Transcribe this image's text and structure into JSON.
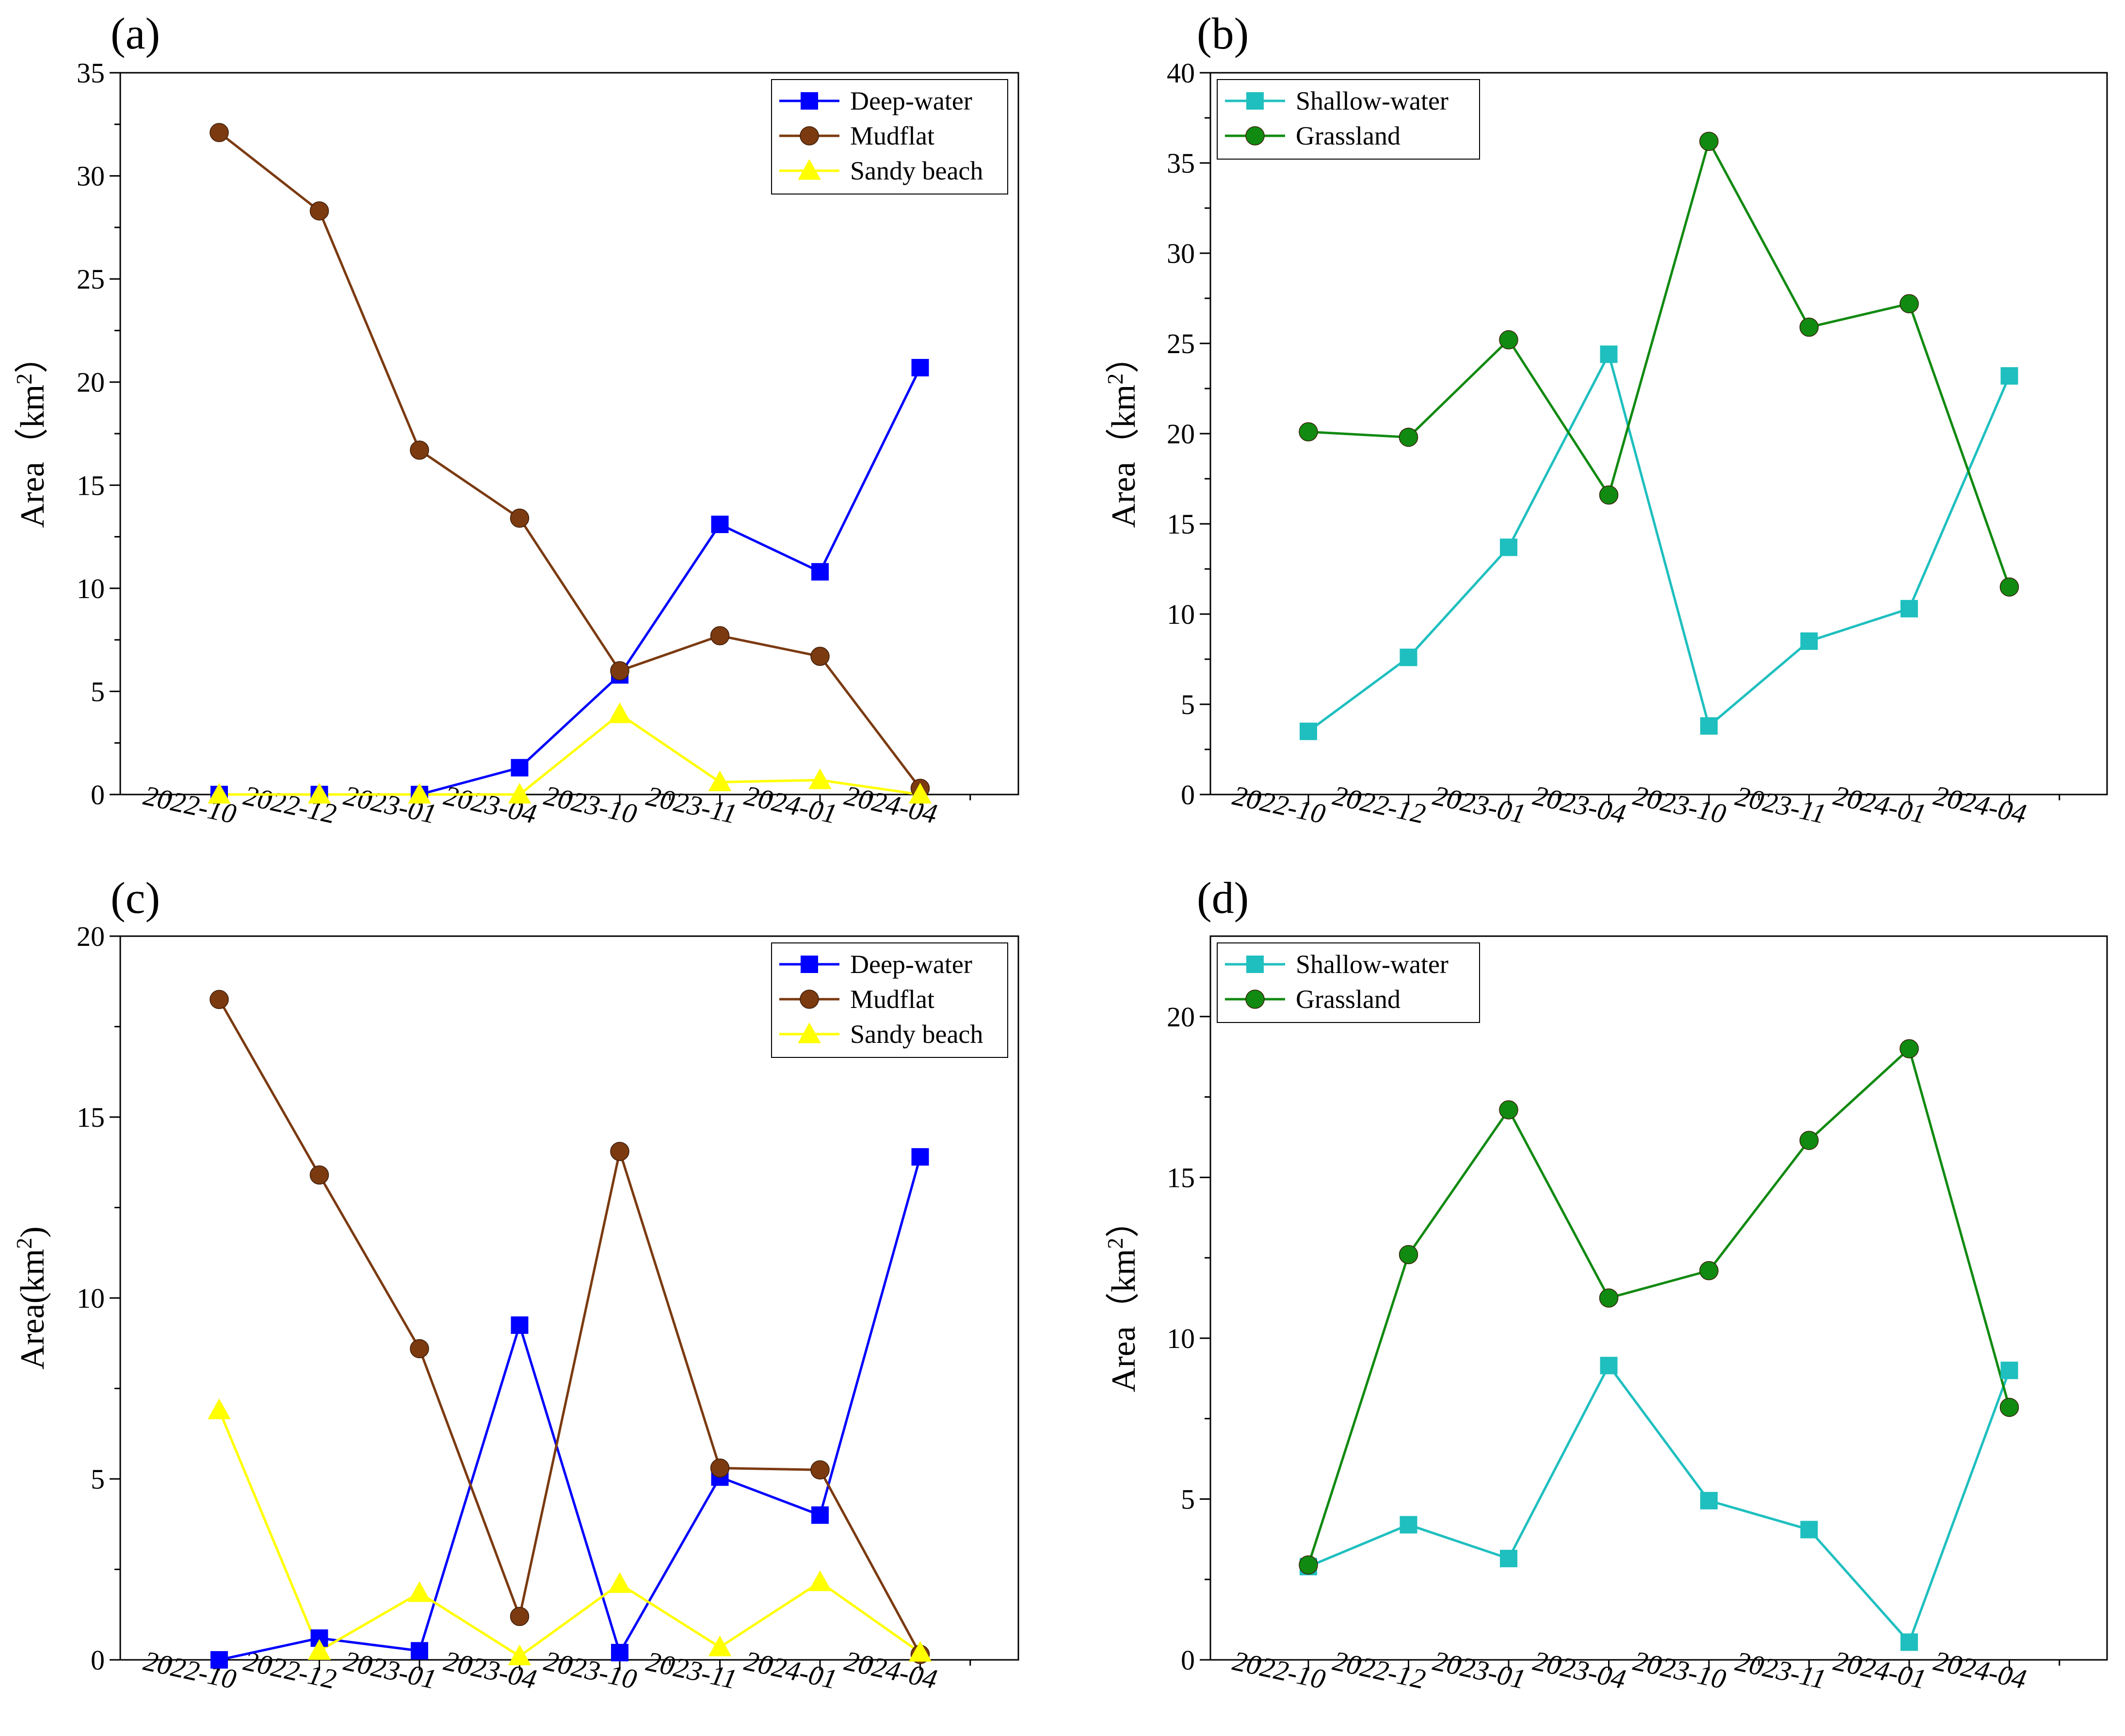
{
  "figure": {
    "panels": [
      "(a)",
      "(b)",
      "(c)",
      "(d)"
    ]
  },
  "chart_data": [
    {
      "type": "line",
      "panel_label": "(a)",
      "categories": [
        "2022-10",
        "2022-12",
        "2023-01",
        "2023-04",
        "2023-10",
        "2023-11",
        "2024-01",
        "2024-04"
      ],
      "ylabel_text": "Area（km",
      "ylabel_sup": "2",
      "ylabel_close": "）",
      "ylim": [
        0,
        35
      ],
      "yticks": [
        0,
        5,
        10,
        15,
        20,
        25,
        30,
        35
      ],
      "legend_position": "top-right",
      "series": [
        {
          "name": "Deep-water",
          "color": "#0000ff",
          "marker": "square",
          "values": [
            0,
            0,
            0,
            1.3,
            5.8,
            13.1,
            10.8,
            20.7
          ]
        },
        {
          "name": "Mudflat",
          "color": "#7b3a10",
          "marker": "circle",
          "values": [
            32.1,
            28.3,
            16.7,
            13.4,
            6.0,
            7.7,
            6.7,
            0.3
          ]
        },
        {
          "name": "Sandy beach",
          "color": "#ffff00",
          "marker": "triangle",
          "values": [
            0,
            0,
            0,
            0,
            3.9,
            0.6,
            0.7,
            0
          ]
        }
      ]
    },
    {
      "type": "line",
      "panel_label": "(b)",
      "categories": [
        "2022-10",
        "2022-12",
        "2023-01",
        "2023-04",
        "2023-10",
        "2023-11",
        "2024-01",
        "2024-04"
      ],
      "ylabel_text": "Area（km",
      "ylabel_sup": "2",
      "ylabel_close": "）",
      "ylim": [
        0,
        40
      ],
      "yticks": [
        0,
        5,
        10,
        15,
        20,
        25,
        30,
        35,
        40
      ],
      "legend_position": "top-left",
      "series": [
        {
          "name": "Shallow-water",
          "color": "#1fbfbf",
          "marker": "square",
          "values": [
            3.5,
            7.6,
            13.7,
            24.4,
            3.8,
            8.5,
            10.3,
            23.2
          ]
        },
        {
          "name": "Grassland",
          "color": "#118a11",
          "marker": "circle",
          "values": [
            20.1,
            19.8,
            25.2,
            16.6,
            36.2,
            25.9,
            27.2,
            11.5
          ]
        }
      ]
    },
    {
      "type": "line",
      "panel_label": "(c)",
      "categories": [
        "2022-10",
        "2022-12",
        "2023-01",
        "2023-04",
        "2023-10",
        "2023-11",
        "2024-01",
        "2024-04"
      ],
      "ylabel_text": "Area(km",
      "ylabel_sup": "2",
      "ylabel_close": ")",
      "ylim": [
        0,
        20
      ],
      "yticks": [
        0,
        5,
        10,
        15,
        20
      ],
      "legend_position": "top-right",
      "series": [
        {
          "name": "Deep-water",
          "color": "#0000ff",
          "marker": "square",
          "values": [
            0,
            0.6,
            0.25,
            9.25,
            0.2,
            5.05,
            4.0,
            13.9
          ]
        },
        {
          "name": "Mudflat",
          "color": "#7b3a10",
          "marker": "circle",
          "values": [
            18.25,
            13.4,
            8.6,
            1.2,
            14.05,
            5.3,
            5.25,
            0.15
          ]
        },
        {
          "name": "Sandy beach",
          "color": "#ffff00",
          "marker": "triangle",
          "values": [
            6.9,
            0.25,
            1.85,
            0.1,
            2.1,
            0.35,
            2.15,
            0.2
          ]
        }
      ]
    },
    {
      "type": "line",
      "panel_label": "(d)",
      "categories": [
        "2022-10",
        "2022-12",
        "2023-01",
        "2023-04",
        "2023-10",
        "2023-11",
        "2024-01",
        "2024-04"
      ],
      "ylabel_text": "Area（km",
      "ylabel_sup": "2",
      "ylabel_close": "）",
      "ylim": [
        0,
        22.5
      ],
      "yticks": [
        0,
        5,
        10,
        15,
        20
      ],
      "legend_position": "top-left",
      "series": [
        {
          "name": "Shallow-water",
          "color": "#1fbfbf",
          "marker": "square",
          "values": [
            2.9,
            4.2,
            3.15,
            9.15,
            4.95,
            4.05,
            0.55,
            9.0
          ]
        },
        {
          "name": "Grassland",
          "color": "#118a11",
          "marker": "circle",
          "values": [
            2.95,
            12.6,
            17.1,
            11.25,
            12.1,
            16.15,
            19.0,
            7.85
          ]
        }
      ]
    }
  ]
}
